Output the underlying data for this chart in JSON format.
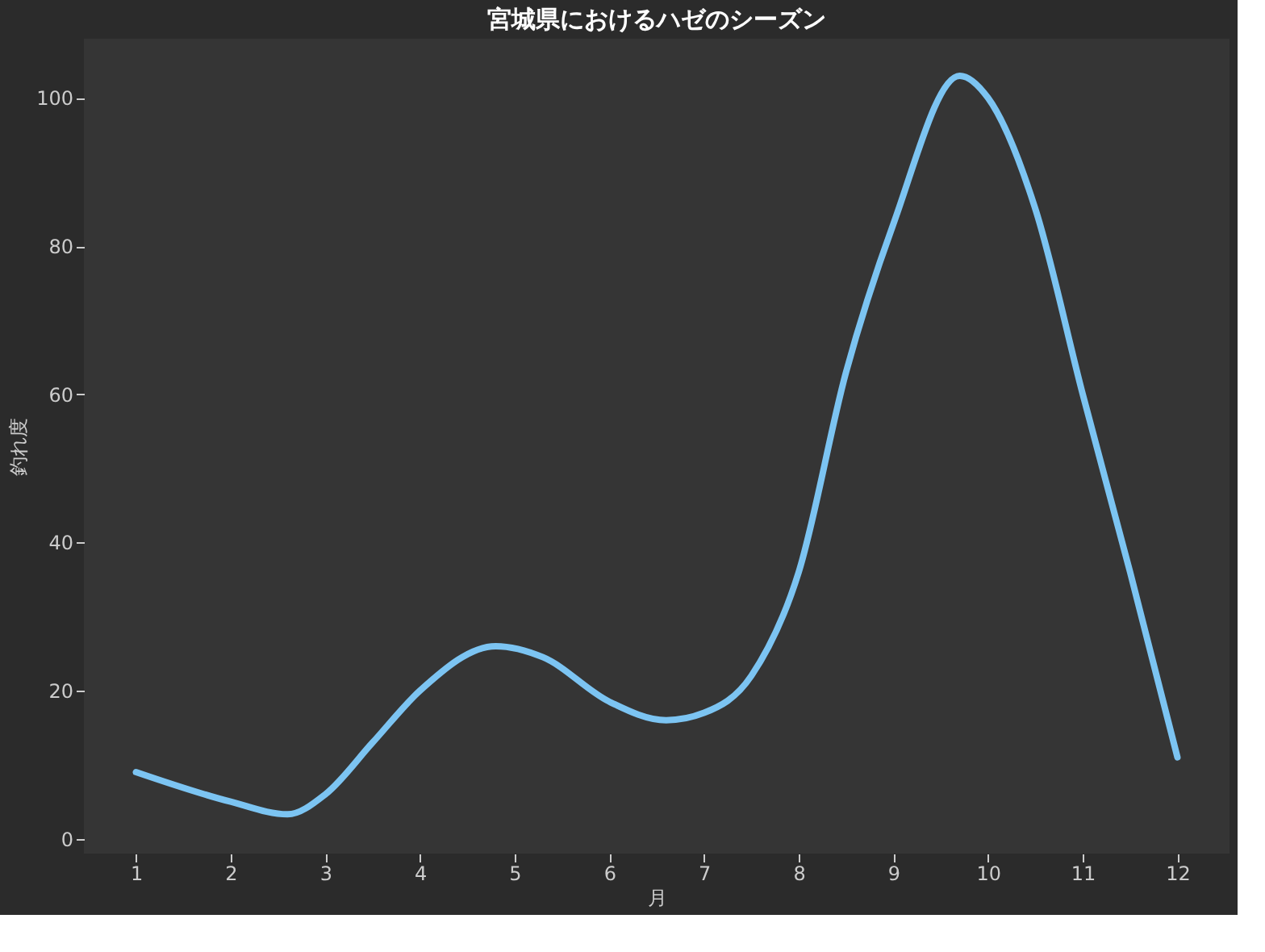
{
  "chart_data": {
    "type": "line",
    "title": "宮城県におけるハゼのシーズン",
    "xlabel": "月",
    "ylabel": "釣れ度",
    "x": [
      1,
      2,
      2.6,
      3,
      3.5,
      4,
      4.8,
      5.3,
      6,
      6.6,
      7,
      7.5,
      8,
      8.5,
      9,
      9.7,
      10,
      10.5,
      11,
      11.5,
      12
    ],
    "series": [
      {
        "color": "#7cc4f2",
        "values": [
          9,
          5,
          3.3,
          6,
          13,
          20,
          26,
          24.5,
          18.5,
          16,
          17,
          22,
          36,
          63,
          83,
          103,
          100,
          85,
          60,
          36,
          11
        ]
      }
    ],
    "xlim": [
      0.45,
      12.55
    ],
    "xticks": [
      1,
      2,
      3,
      4,
      5,
      6,
      7,
      8,
      9,
      10,
      11,
      12
    ],
    "ylim": [
      -2,
      108
    ],
    "yticks": [
      0,
      20,
      40,
      60,
      80,
      100
    ],
    "grid": false,
    "marker": "none",
    "line_style": "solid"
  }
}
